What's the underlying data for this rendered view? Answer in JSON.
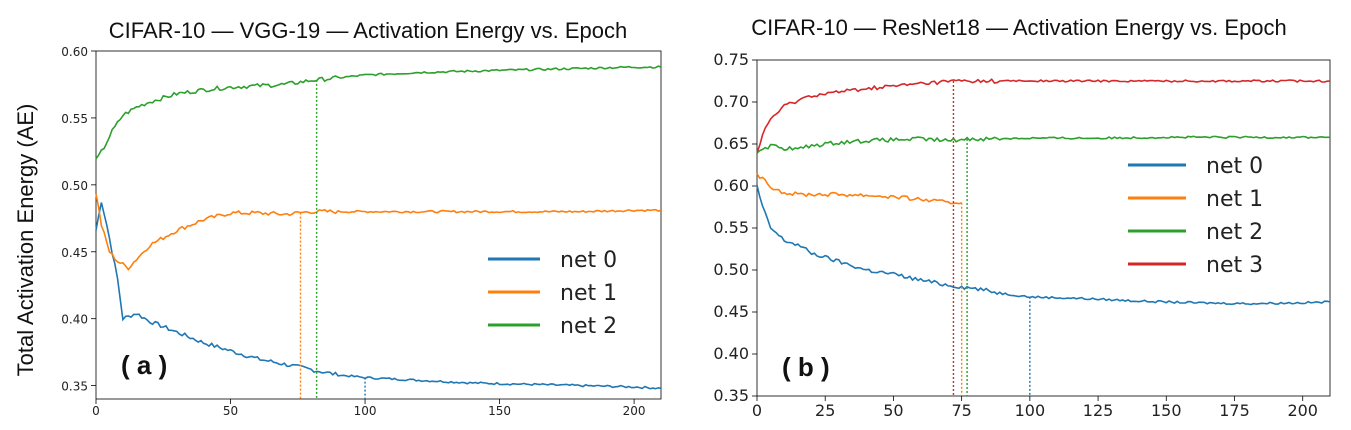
{
  "y_axis_label": "Total Activation Energy (AE)",
  "chart_data": [
    {
      "type": "line",
      "panel_label": "( a )",
      "title": "CIFAR-10 — VGG-19 — Activation Energy vs. Epoch",
      "xlabel": "",
      "ylabel": "Total Activation Energy (AE)",
      "xlim": [
        0,
        210
      ],
      "ylim": [
        0.34,
        0.6
      ],
      "xticks": [
        0,
        50,
        100,
        150,
        200
      ],
      "yticks": [
        0.35,
        0.4,
        0.45,
        0.5,
        0.55,
        0.6
      ],
      "ytick_labels": [
        "0.35",
        "0.40",
        "0.45",
        "0.50",
        "0.55",
        "0.60"
      ],
      "legend_position": "right",
      "series": [
        {
          "name": "net 0",
          "color": "#1f77b4",
          "x": [
            0,
            2,
            4,
            6,
            8,
            10,
            15,
            20,
            30,
            40,
            50,
            60,
            70,
            80,
            90,
            100,
            120,
            140,
            160,
            180,
            200,
            210
          ],
          "y": [
            0.466,
            0.488,
            0.47,
            0.45,
            0.43,
            0.4,
            0.404,
            0.398,
            0.39,
            0.382,
            0.376,
            0.37,
            0.366,
            0.362,
            0.358,
            0.356,
            0.354,
            0.352,
            0.351,
            0.35,
            0.349,
            0.348
          ],
          "stop_epoch": 100
        },
        {
          "name": "net 1",
          "color": "#ff7f0e",
          "x": [
            0,
            2,
            5,
            8,
            12,
            20,
            30,
            40,
            50,
            60,
            70,
            80,
            100,
            120,
            140,
            160,
            180,
            200,
            210
          ],
          "y": [
            0.494,
            0.47,
            0.45,
            0.443,
            0.438,
            0.455,
            0.466,
            0.474,
            0.479,
            0.479,
            0.478,
            0.48,
            0.48,
            0.48,
            0.48,
            0.48,
            0.48,
            0.481,
            0.481
          ],
          "stop_epoch": 76
        },
        {
          "name": "net 2",
          "color": "#2ca02c",
          "x": [
            0,
            3,
            6,
            10,
            15,
            20,
            30,
            40,
            50,
            60,
            70,
            80,
            90,
            100,
            120,
            140,
            160,
            180,
            200,
            210
          ],
          "y": [
            0.518,
            0.528,
            0.54,
            0.552,
            0.558,
            0.562,
            0.568,
            0.571,
            0.573,
            0.574,
            0.575,
            0.578,
            0.58,
            0.582,
            0.584,
            0.585,
            0.586,
            0.587,
            0.588,
            0.588
          ],
          "stop_epoch": 82
        }
      ]
    },
    {
      "type": "line",
      "panel_label": "( b )",
      "title": "CIFAR-10 — ResNet18 — Activation Energy vs. Epoch",
      "xlabel": "",
      "ylabel": "",
      "xlim": [
        0,
        210
      ],
      "ylim": [
        0.35,
        0.75
      ],
      "xticks": [
        0,
        25,
        50,
        75,
        100,
        125,
        150,
        175,
        200
      ],
      "yticks": [
        0.35,
        0.4,
        0.45,
        0.5,
        0.55,
        0.6,
        0.65,
        0.7,
        0.75
      ],
      "ytick_labels": [
        "0.35",
        "0.40",
        "0.45",
        "0.50",
        "0.55",
        "0.60",
        "0.65",
        "0.70",
        "0.75"
      ],
      "legend_position": "right",
      "series": [
        {
          "name": "net 0",
          "color": "#1f77b4",
          "x": [
            0,
            2,
            5,
            10,
            15,
            20,
            30,
            40,
            50,
            60,
            70,
            80,
            90,
            100,
            120,
            140,
            160,
            180,
            200,
            210
          ],
          "y": [
            0.6,
            0.575,
            0.55,
            0.535,
            0.53,
            0.52,
            0.51,
            0.5,
            0.495,
            0.488,
            0.482,
            0.478,
            0.472,
            0.468,
            0.466,
            0.463,
            0.461,
            0.46,
            0.461,
            0.462
          ],
          "stop_epoch": 100
        },
        {
          "name": "net 1",
          "color": "#ff7f0e",
          "x": [
            0,
            3,
            6,
            10,
            15,
            20,
            30,
            40,
            50,
            60,
            70,
            75
          ],
          "y": [
            0.615,
            0.605,
            0.598,
            0.592,
            0.59,
            0.59,
            0.59,
            0.589,
            0.587,
            0.584,
            0.58,
            0.58
          ],
          "stop_epoch": 75
        },
        {
          "name": "net 2",
          "color": "#2ca02c",
          "x": [
            0,
            3,
            6,
            10,
            15,
            20,
            30,
            40,
            50,
            60,
            70,
            77,
            100,
            125,
            150,
            175,
            200,
            210
          ],
          "y": [
            0.641,
            0.646,
            0.648,
            0.645,
            0.644,
            0.648,
            0.652,
            0.654,
            0.655,
            0.656,
            0.654,
            0.656,
            0.657,
            0.657,
            0.658,
            0.658,
            0.658,
            0.658
          ],
          "stop_epoch": 77
        },
        {
          "name": "net 3",
          "color": "#d62728",
          "x": [
            0,
            2,
            5,
            10,
            15,
            20,
            30,
            40,
            50,
            60,
            72,
            100,
            125,
            150,
            175,
            200,
            210
          ],
          "y": [
            0.64,
            0.66,
            0.68,
            0.695,
            0.702,
            0.708,
            0.712,
            0.716,
            0.719,
            0.722,
            0.725,
            0.725,
            0.725,
            0.725,
            0.725,
            0.725,
            0.725
          ],
          "stop_epoch": 72
        }
      ]
    }
  ]
}
